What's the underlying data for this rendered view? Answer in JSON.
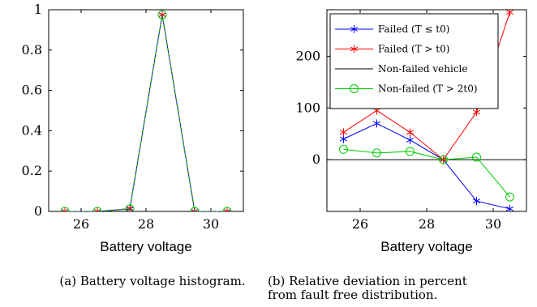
{
  "chart_data": [
    {
      "type": "line",
      "xlabel": "Battery voltage",
      "ylabel": "",
      "caption": "(a)  Battery voltage histogram.",
      "xlim": [
        25.0,
        31.0
      ],
      "ylim": [
        0,
        1
      ],
      "xticks": [
        "26",
        "28",
        "30"
      ],
      "yticks": [
        "0",
        "0.2",
        "0.4",
        "0.6",
        "0.8",
        "1"
      ],
      "x": [
        25.5,
        26.5,
        27.5,
        28.5,
        29.5,
        30.5
      ],
      "series": [
        {
          "name": "Failed (T ≤ t0)",
          "color": "#0000ff",
          "marker": "asterisk",
          "values": [
            0,
            0,
            0.012,
            0.975,
            0,
            0
          ]
        },
        {
          "name": "Failed (T > t0)",
          "color": "#ff0000",
          "marker": "asterisk",
          "values": [
            0,
            0,
            0.015,
            0.975,
            0,
            0
          ]
        },
        {
          "name": "Non-failed vehicle",
          "color": "#000000",
          "marker": "none",
          "values": [
            0,
            0,
            0.013,
            0.975,
            0,
            0
          ]
        },
        {
          "name": "Non-failed (T > 2t0)",
          "color": "#00cc00",
          "marker": "circle",
          "values": [
            0,
            0,
            0.013,
            0.975,
            0,
            0
          ]
        }
      ]
    },
    {
      "type": "line",
      "xlabel": "Battery voltage",
      "ylabel": "",
      "caption_lines": [
        "(b)  Relative deviation in percent",
        "from fault free distribution."
      ],
      "xlim": [
        25.0,
        31.0
      ],
      "ylim": [
        -100,
        290
      ],
      "xticks": [
        "26",
        "28",
        "30"
      ],
      "yticks": [
        "0",
        "100",
        "200"
      ],
      "legend_position": "top-right",
      "x": [
        25.5,
        26.5,
        27.5,
        28.5,
        29.5,
        30.5
      ],
      "series": [
        {
          "name": "Failed (T ≤ t0)",
          "color": "#0000ff",
          "marker": "asterisk",
          "values": [
            40,
            70,
            38,
            0,
            -80,
            -95
          ]
        },
        {
          "name": "Failed (T > t0)",
          "color": "#ff0000",
          "marker": "asterisk",
          "values": [
            53,
            95,
            53,
            0,
            92,
            285
          ]
        },
        {
          "name": "Non-failed vehicle",
          "color": "#000000",
          "marker": "none",
          "values": [
            0,
            0,
            0,
            0,
            0,
            0
          ],
          "extend": true
        },
        {
          "name": "Non-failed (T > 2t0)",
          "color": "#00cc00",
          "marker": "circle",
          "values": [
            20,
            13,
            16,
            0,
            5,
            -72
          ]
        }
      ]
    }
  ]
}
